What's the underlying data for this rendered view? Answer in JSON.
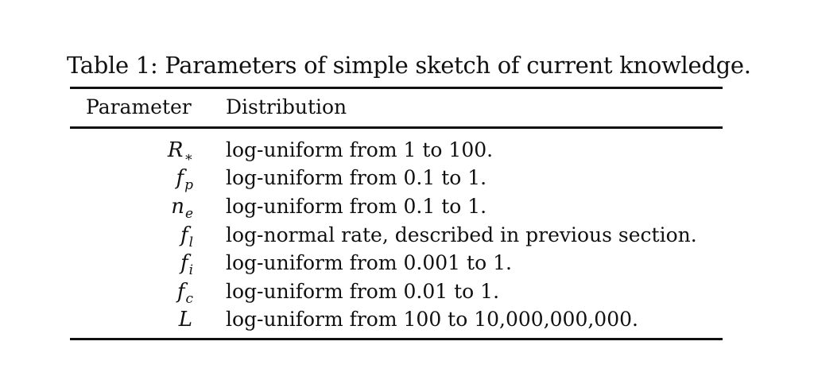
{
  "table": {
    "caption": "Table 1: Parameters of simple sketch of current knowledge.",
    "headers": {
      "parameter": "Parameter",
      "distribution": "Distribution"
    },
    "rows": [
      {
        "symbol": "R",
        "subscript": "∗",
        "distribution": "log-uniform from 1 to 100."
      },
      {
        "symbol": "f",
        "subscript": "p",
        "distribution": "log-uniform from 0.1 to 1."
      },
      {
        "symbol": "n",
        "subscript": "e",
        "distribution": "log-uniform from 0.1 to 1."
      },
      {
        "symbol": "f",
        "subscript": "l",
        "distribution": "log-normal rate, described in previous section."
      },
      {
        "symbol": "f",
        "subscript": "i",
        "distribution": "log-uniform from 0.001 to 1."
      },
      {
        "symbol": "f",
        "subscript": "c",
        "distribution": "log-uniform from 0.01 to 1."
      },
      {
        "symbol": "L",
        "subscript": "",
        "distribution": "log-uniform from 100 to 10,000,000,000."
      }
    ]
  }
}
